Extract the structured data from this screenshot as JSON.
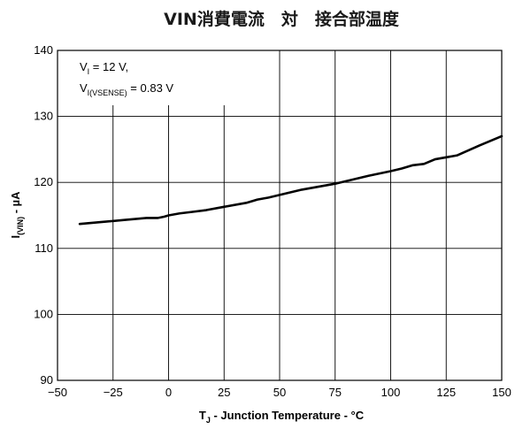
{
  "chart_data": {
    "type": "line",
    "title": "VIN消費電流　対　接合部温度",
    "xlabel": {
      "main": "T",
      "sub": "J",
      "rest": " - Junction Temperature - °C"
    },
    "ylabel": {
      "main": "I",
      "sub": "(VIN)",
      "rest": " - µA"
    },
    "xlim": [
      -50,
      150
    ],
    "ylim": [
      90,
      140
    ],
    "xticks": [
      -50,
      -25,
      0,
      25,
      50,
      75,
      100,
      125,
      150
    ],
    "yticks": [
      90,
      100,
      110,
      120,
      130,
      140
    ],
    "xtick_labels": [
      "−50",
      "−25",
      "0",
      "25",
      "50",
      "75",
      "100",
      "125",
      "150"
    ],
    "ytick_labels": [
      "90",
      "100",
      "110",
      "120",
      "130",
      "140"
    ],
    "grid": true,
    "annotation": {
      "line1": {
        "main": "V",
        "sub": "I",
        "rest": " = 12 V,"
      },
      "line2": {
        "main": "V",
        "sub": "I(VSENSE)",
        "rest": " = 0.83 V"
      }
    },
    "series": [
      {
        "x": [
          -40,
          -30,
          -20,
          -10,
          -5,
          -2,
          0,
          5,
          10,
          17,
          25,
          35,
          40,
          45,
          50,
          55,
          60,
          70,
          75,
          80,
          90,
          100,
          105,
          110,
          115,
          120,
          130,
          140,
          150
        ],
        "y": [
          113.7,
          114.0,
          114.3,
          114.6,
          114.6,
          114.8,
          115.0,
          115.3,
          115.5,
          115.8,
          116.3,
          116.9,
          117.4,
          117.7,
          118.1,
          118.5,
          118.9,
          119.5,
          119.8,
          120.2,
          121.0,
          121.7,
          122.1,
          122.6,
          122.8,
          123.5,
          124.1,
          125.6,
          127.0
        ]
      }
    ]
  }
}
